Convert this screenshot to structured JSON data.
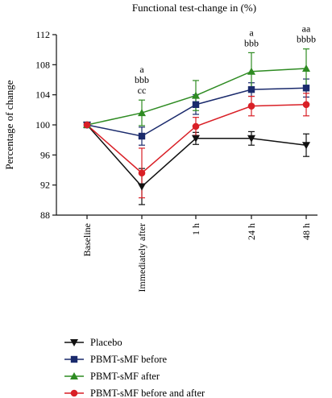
{
  "chart_data": {
    "type": "line",
    "title": "Functional test-change in (%)",
    "xlabel": "",
    "ylabel": "Percentage of change",
    "ylim": [
      88,
      112
    ],
    "yticks": [
      88,
      92,
      96,
      100,
      104,
      108,
      112
    ],
    "categories": [
      "Baseline",
      "Immediately after",
      "1 h",
      "24 h",
      "48 h"
    ],
    "legend_position": "bottom-left",
    "series": [
      {
        "name": "Placebo",
        "color": "#111111",
        "marker": "triangle-down",
        "values": [
          100,
          91.8,
          98.2,
          98.2,
          97.3
        ],
        "errors": [
          0,
          2.4,
          0.8,
          0.9,
          1.5
        ]
      },
      {
        "name": "PBMT-sMF before",
        "color": "#1a2a6c",
        "marker": "square",
        "values": [
          100,
          98.5,
          102.7,
          104.7,
          104.9
        ],
        "errors": [
          0,
          1.2,
          1.3,
          0.9,
          1.2
        ]
      },
      {
        "name": "PBMT-sMF after",
        "color": "#2e8b22",
        "marker": "triangle-up",
        "values": [
          100,
          101.6,
          103.9,
          107.1,
          107.5
        ],
        "errors": [
          0,
          1.7,
          2.0,
          2.5,
          2.6
        ]
      },
      {
        "name": "PBMT-sMF before and after",
        "color": "#d91f26",
        "marker": "circle",
        "values": [
          100,
          93.6,
          99.8,
          102.5,
          102.7
        ],
        "errors": [
          0,
          3.3,
          1.2,
          1.3,
          1.5
        ]
      }
    ],
    "annotations": [
      {
        "category": "Immediately after",
        "lines": [
          "a",
          "bbb",
          "cc"
        ]
      },
      {
        "category": "24 h",
        "lines": [
          "a",
          "bbb"
        ]
      },
      {
        "category": "48 h",
        "lines": [
          "aa",
          "bbbb"
        ]
      }
    ]
  }
}
